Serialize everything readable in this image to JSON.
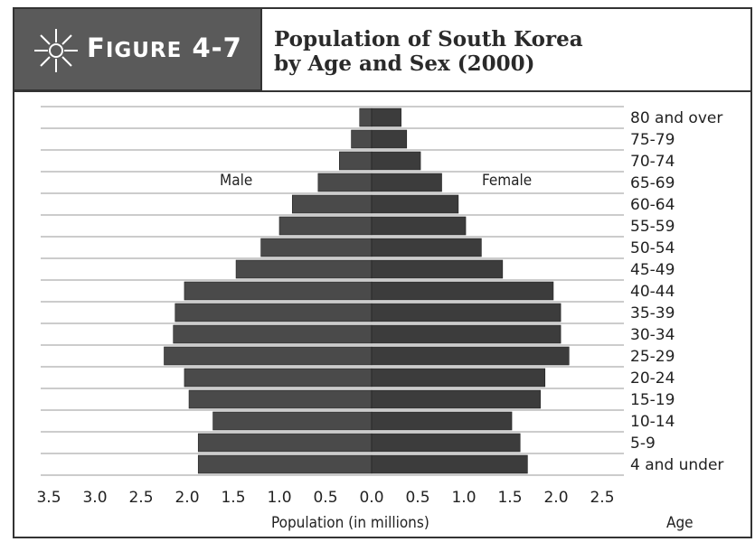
{
  "header": {
    "figure_label_big": "F",
    "figure_label_rest": "IGURE",
    "figure_number": "4-7",
    "title_line1": "Population of South Korea",
    "title_line2": "by Age and Sex (2000)",
    "icon": "starburst-icon"
  },
  "chart_data": {
    "type": "bar",
    "subtype": "population-pyramid",
    "title": "Population of South Korea by Age and Sex (2000)",
    "xlabel": "Population (in millions)",
    "ylabel": "Age",
    "x_ticks": [
      "3.5",
      "3.0",
      "2.5",
      "2.0",
      "1.5",
      "1.0",
      "0.5",
      "0.0",
      "0.5",
      "1.0",
      "1.5",
      "2.0",
      "2.5"
    ],
    "xlim_male": [
      0,
      3.5
    ],
    "xlim_female": [
      0,
      2.5
    ],
    "grid": true,
    "categories": [
      "80 and over",
      "75-79",
      "70-74",
      "65-69",
      "60-64",
      "55-59",
      "50-54",
      "45-49",
      "40-44",
      "35-39",
      "30-34",
      "25-29",
      "20-24",
      "15-19",
      "10-14",
      "5-9",
      "4 and under"
    ],
    "series": [
      {
        "name": "Male",
        "values": [
          0.13,
          0.22,
          0.35,
          0.58,
          0.86,
          1.0,
          1.2,
          1.47,
          2.03,
          2.13,
          2.15,
          2.25,
          2.03,
          1.98,
          1.72,
          1.88,
          1.88
        ]
      },
      {
        "name": "Female",
        "values": [
          0.32,
          0.38,
          0.53,
          0.76,
          0.94,
          1.02,
          1.19,
          1.42,
          1.97,
          2.05,
          2.05,
          2.14,
          1.88,
          1.83,
          1.52,
          1.61,
          1.69
        ]
      }
    ],
    "colors": {
      "male": "#4a4a4a",
      "female": "#3c3c3c",
      "grid": "#9a9a9a"
    }
  }
}
